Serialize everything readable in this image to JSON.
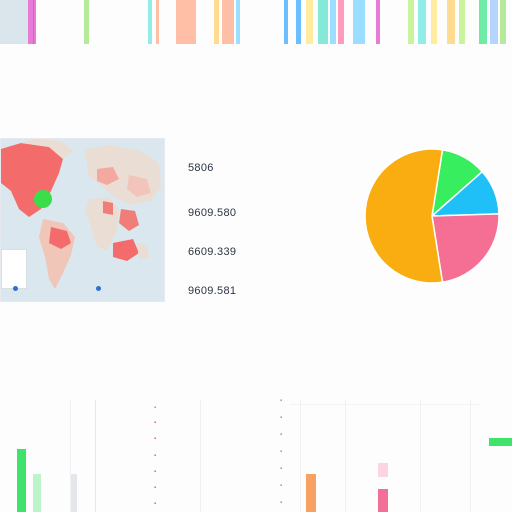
{
  "header_palette": [
    "#dbe6ec",
    "#e04fc8",
    "#9ee37a",
    "#6de6e0",
    "#ffa98a",
    "#ffcf6a",
    "#3aa8ff",
    "#ffe680",
    "#5ee0c8",
    "#7bd3ff",
    "#ff7aa8",
    "#b7f07a",
    "#3ee48a",
    "#9cc7ff"
  ],
  "map_panel": {
    "legend_text": "",
    "attribution": ""
  },
  "stats": [
    {
      "label": "",
      "value": "5806"
    },
    {
      "label": "",
      "value": "9609.580"
    },
    {
      "label": "",
      "value": "6609.339"
    },
    {
      "label": "",
      "value": "9609.581"
    }
  ],
  "pie_panel": {
    "title": "",
    "top_mark": "",
    "labels": [
      "",
      ""
    ],
    "percent_label": "",
    "colors": {
      "orange": "#f9ad10",
      "pink": "#f46f93",
      "blue": "#1ec0f7",
      "green": "#36ee5e"
    }
  },
  "chart_data": {
    "type": "pie",
    "slices": [
      {
        "value": 11,
        "color": "#36ee5e"
      },
      {
        "value": 11,
        "color": "#1ec0f7"
      },
      {
        "value": 23,
        "color": "#f46f93"
      },
      {
        "value": 55,
        "color": "#f9ad10"
      }
    ]
  },
  "bottom_panel": {
    "title": "",
    "legend": {
      "label_1": "",
      "label_2": ""
    },
    "accent": {
      "green": "#3fe26a",
      "orange": "#f7a261",
      "pink": "#f26f97"
    }
  }
}
